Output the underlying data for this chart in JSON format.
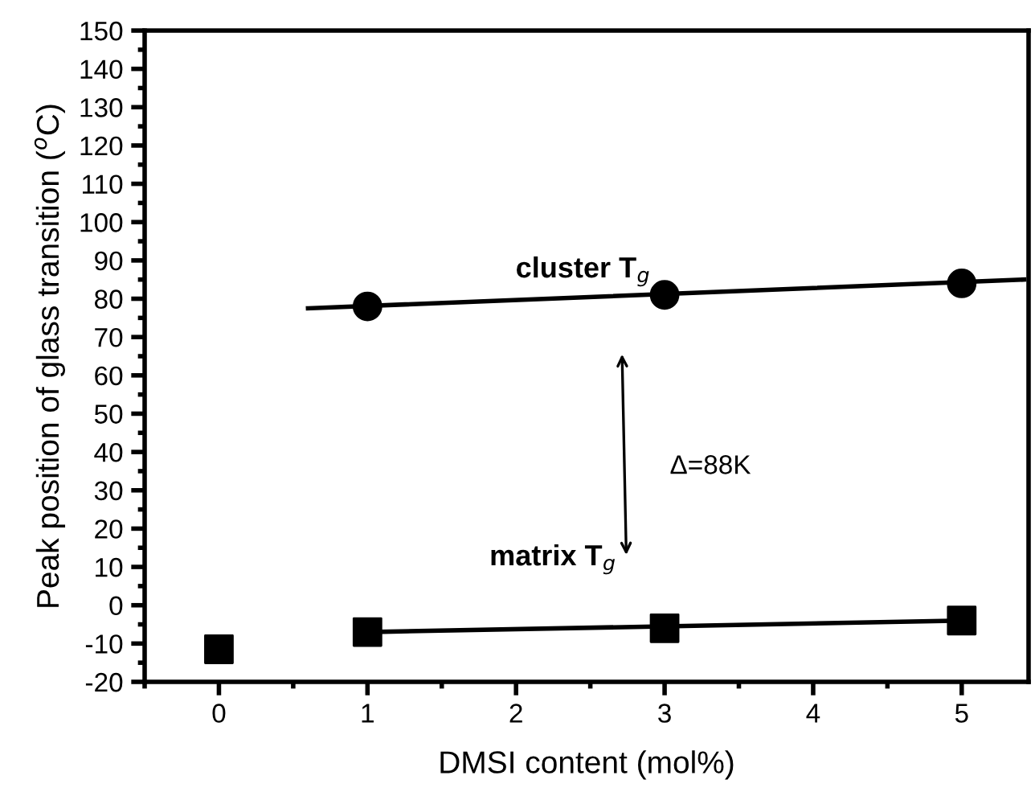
{
  "chart_data": {
    "type": "scatter",
    "xlabel": "DMSI content (mol%)",
    "ylabel": "Peak position of glass transition ($^{o}$C)",
    "xlim": [
      -0.5,
      5.45
    ],
    "ylim": [
      -20,
      150
    ],
    "xticks": [
      0,
      1,
      2,
      3,
      4,
      5
    ],
    "yticks": [
      -20,
      -10,
      0,
      10,
      20,
      30,
      40,
      50,
      60,
      70,
      80,
      90,
      100,
      110,
      120,
      130,
      140,
      150
    ],
    "grid": false,
    "series": [
      {
        "marker": "circle",
        "color": "#000000",
        "x": [
          1,
          3,
          5
        ],
        "values": [
          78,
          81,
          84
        ]
      },
      {
        "type": "line",
        "line_style": "solid",
        "color": "#000000",
        "x": [
          0.6,
          5.42
        ],
        "values": [
          77.5,
          85
        ]
      },
      {
        "marker": "square",
        "color": "#000000",
        "x": [
          0,
          1,
          3,
          5
        ],
        "values": [
          -11.5,
          -7,
          -6,
          -4
        ]
      },
      {
        "type": "line",
        "line_style": "solid",
        "color": "#000000",
        "x": [
          1,
          5
        ],
        "values": [
          -7,
          -4
        ]
      }
    ],
    "annotations": [
      "cluster T$_{g}$",
      "matrix T$_{g}$",
      "Δ=88K"
    ]
  }
}
